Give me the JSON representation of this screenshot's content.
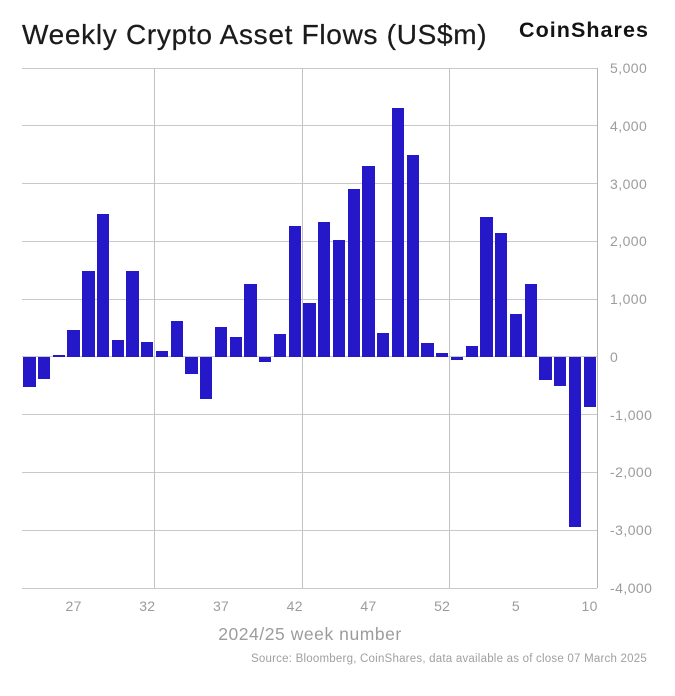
{
  "header": {
    "title": "Weekly Crypto Asset Flows (US$m)",
    "brand": "CoinShares"
  },
  "chart_data": {
    "type": "bar",
    "title": "Weekly Crypto Asset Flows (US$m)",
    "xlabel": "2024/25 week number",
    "ylabel": "",
    "categories": [
      "24",
      "25",
      "26",
      "27",
      "28",
      "29",
      "30",
      "31",
      "32",
      "33",
      "34",
      "35",
      "36",
      "37",
      "38",
      "39",
      "40",
      "41",
      "42",
      "43",
      "44",
      "45",
      "46",
      "47",
      "48",
      "49",
      "50",
      "51",
      "52",
      "1",
      "2",
      "3",
      "4",
      "5",
      "6",
      "7",
      "8",
      "9",
      "10"
    ],
    "values": [
      -520,
      -390,
      25,
      470,
      1480,
      2480,
      300,
      1480,
      250,
      110,
      620,
      -290,
      -730,
      510,
      350,
      1260,
      -90,
      400,
      2260,
      930,
      2340,
      2030,
      2900,
      3300,
      420,
      4300,
      3490,
      240,
      70,
      -50,
      190,
      2420,
      2140,
      740,
      1260,
      -400,
      -500,
      -2950,
      -860
    ],
    "ylim": [
      -4000,
      5000
    ],
    "ytick_step": 1000,
    "ytick_labels": [
      "5,000",
      "4,000",
      "3,000",
      "2,000",
      "1,000",
      "0",
      "-1,000",
      "-2,000",
      "-3,000",
      "-4,000"
    ],
    "xtick_labels": [
      "27",
      "32",
      "37",
      "42",
      "47",
      "52",
      "5",
      "10"
    ],
    "xtick_indices": [
      3,
      8,
      13,
      18,
      23,
      28,
      33,
      38
    ],
    "vgrid_boundary_indices": [
      9,
      19,
      29
    ],
    "grid": "on",
    "legend_position": "none",
    "bar_color": "#2418c8"
  },
  "footer": {
    "source_note": "Source: Bloomberg, CoinShares, data available as of close 07 March 2025"
  }
}
